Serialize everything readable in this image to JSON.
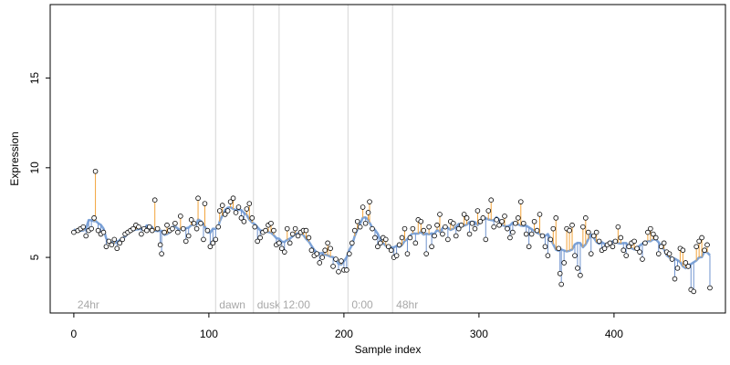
{
  "chart_data": {
    "type": "scatter",
    "title": "",
    "xlabel": "Sample index",
    "ylabel": "Expression",
    "xlim": [
      -17.5,
      482.5
    ],
    "ylim": [
      1.9,
      19.1
    ],
    "x_ticks": [
      0,
      100,
      200,
      300,
      400
    ],
    "y_ticks": [
      5,
      10,
      15
    ],
    "grid": false,
    "legend": "none",
    "colors": {
      "fitted_line": "#7ea4d8",
      "residual_up": "#f2a33a",
      "residual_down": "#6f93cf",
      "point_edge": "#000000",
      "point_fill": "#ffffff",
      "region_line": "#d6d6d6",
      "region_text": "#a8a8a8"
    },
    "region_markers": [
      {
        "x": 0,
        "label": "24hr"
      },
      {
        "x": 105,
        "label": "dawn"
      },
      {
        "x": 133,
        "label": "dusk"
      },
      {
        "x": 152,
        "label": "12:00"
      },
      {
        "x": 203,
        "label": "0:00"
      },
      {
        "x": 236,
        "label": "48hr"
      }
    ],
    "series_summary": "approximately 465 samples; observed expression around 4–8 with one outlier near 9.8 at index ~16",
    "points": [
      [
        0,
        6.4
      ],
      [
        3,
        6.5
      ],
      [
        5,
        6.6
      ],
      [
        7,
        6.7
      ],
      [
        9,
        6.2
      ],
      [
        11,
        6.5
      ],
      [
        13,
        6.6
      ],
      [
        15,
        7.2
      ],
      [
        16,
        9.8
      ],
      [
        18,
        6.5
      ],
      [
        20,
        6.3
      ],
      [
        22,
        6.4
      ],
      [
        24,
        5.6
      ],
      [
        26,
        5.9
      ],
      [
        28,
        5.7
      ],
      [
        30,
        6.0
      ],
      [
        32,
        5.5
      ],
      [
        34,
        5.8
      ],
      [
        36,
        6.0
      ],
      [
        38,
        6.3
      ],
      [
        40,
        6.4
      ],
      [
        42,
        6.5
      ],
      [
        44,
        6.6
      ],
      [
        46,
        6.8
      ],
      [
        48,
        6.7
      ],
      [
        50,
        6.3
      ],
      [
        52,
        6.6
      ],
      [
        54,
        6.5
      ],
      [
        56,
        6.7
      ],
      [
        58,
        6.5
      ],
      [
        60,
        8.2
      ],
      [
        62,
        6.6
      ],
      [
        64,
        5.7
      ],
      [
        65,
        5.2
      ],
      [
        67,
        6.4
      ],
      [
        69,
        6.8
      ],
      [
        71,
        6.5
      ],
      [
        73,
        6.6
      ],
      [
        75,
        6.9
      ],
      [
        77,
        6.4
      ],
      [
        79,
        7.3
      ],
      [
        81,
        6.6
      ],
      [
        83,
        5.9
      ],
      [
        85,
        6.2
      ],
      [
        87,
        7.1
      ],
      [
        89,
        6.9
      ],
      [
        91,
        6.6
      ],
      [
        92,
        8.3
      ],
      [
        94,
        6.9
      ],
      [
        96,
        6.0
      ],
      [
        97,
        8.0
      ],
      [
        99,
        6.5
      ],
      [
        101,
        5.6
      ],
      [
        103,
        5.8
      ],
      [
        105,
        6.0
      ],
      [
        107,
        6.7
      ],
      [
        108,
        7.6
      ],
      [
        110,
        7.9
      ],
      [
        112,
        7.4
      ],
      [
        114,
        7.6
      ],
      [
        116,
        8.1
      ],
      [
        118,
        8.3
      ],
      [
        120,
        7.5
      ],
      [
        122,
        7.8
      ],
      [
        124,
        7.2
      ],
      [
        126,
        7.0
      ],
      [
        128,
        7.7
      ],
      [
        130,
        8.0
      ],
      [
        132,
        7.2
      ],
      [
        134,
        6.7
      ],
      [
        136,
        5.9
      ],
      [
        138,
        6.1
      ],
      [
        140,
        6.4
      ],
      [
        142,
        6.5
      ],
      [
        144,
        6.8
      ],
      [
        146,
        6.9
      ],
      [
        148,
        6.5
      ],
      [
        150,
        5.7
      ],
      [
        152,
        5.8
      ],
      [
        154,
        5.5
      ],
      [
        156,
        5.3
      ],
      [
        158,
        6.6
      ],
      [
        160,
        5.8
      ],
      [
        162,
        6.3
      ],
      [
        164,
        6.6
      ],
      [
        166,
        6.2
      ],
      [
        168,
        6.4
      ],
      [
        170,
        6.5
      ],
      [
        172,
        6.5
      ],
      [
        174,
        6.1
      ],
      [
        176,
        5.4
      ],
      [
        178,
        5.1
      ],
      [
        180,
        5.2
      ],
      [
        182,
        4.7
      ],
      [
        184,
        5.0
      ],
      [
        186,
        5.4
      ],
      [
        188,
        5.8
      ],
      [
        190,
        5.5
      ],
      [
        192,
        4.5
      ],
      [
        194,
        4.9
      ],
      [
        196,
        4.2
      ],
      [
        198,
        4.8
      ],
      [
        200,
        4.3
      ],
      [
        202,
        4.3
      ],
      [
        204,
        5.2
      ],
      [
        206,
        5.8
      ],
      [
        208,
        6.5
      ],
      [
        210,
        7.0
      ],
      [
        212,
        6.7
      ],
      [
        214,
        7.8
      ],
      [
        216,
        6.9
      ],
      [
        218,
        7.5
      ],
      [
        219,
        8.1
      ],
      [
        221,
        6.6
      ],
      [
        223,
        6.1
      ],
      [
        225,
        5.6
      ],
      [
        227,
        5.8
      ],
      [
        229,
        6.1
      ],
      [
        231,
        6.0
      ],
      [
        233,
        5.6
      ],
      [
        235,
        5.4
      ],
      [
        237,
        5.0
      ],
      [
        239,
        5.1
      ],
      [
        241,
        5.7
      ],
      [
        243,
        6.1
      ],
      [
        245,
        6.6
      ],
      [
        247,
        5.2
      ],
      [
        249,
        6.1
      ],
      [
        251,
        6.6
      ],
      [
        253,
        5.8
      ],
      [
        255,
        7.1
      ],
      [
        257,
        7.0
      ],
      [
        259,
        6.5
      ],
      [
        261,
        5.2
      ],
      [
        263,
        6.7
      ],
      [
        265,
        5.6
      ],
      [
        267,
        6.2
      ],
      [
        269,
        6.8
      ],
      [
        271,
        7.4
      ],
      [
        273,
        6.3
      ],
      [
        275,
        6.7
      ],
      [
        277,
        6.0
      ],
      [
        279,
        7.0
      ],
      [
        281,
        6.9
      ],
      [
        283,
        6.2
      ],
      [
        285,
        6.6
      ],
      [
        287,
        6.8
      ],
      [
        289,
        7.4
      ],
      [
        291,
        7.2
      ],
      [
        293,
        6.3
      ],
      [
        295,
        6.9
      ],
      [
        297,
        6.6
      ],
      [
        299,
        7.6
      ],
      [
        301,
        7.0
      ],
      [
        303,
        7.2
      ],
      [
        305,
        6.0
      ],
      [
        307,
        7.6
      ],
      [
        309,
        8.2
      ],
      [
        311,
        6.7
      ],
      [
        313,
        7.1
      ],
      [
        315,
        6.8
      ],
      [
        317,
        7.0
      ],
      [
        319,
        7.3
      ],
      [
        321,
        6.6
      ],
      [
        323,
        6.1
      ],
      [
        325,
        6.4
      ],
      [
        327,
        6.9
      ],
      [
        329,
        7.2
      ],
      [
        331,
        8.1
      ],
      [
        333,
        6.9
      ],
      [
        335,
        6.3
      ],
      [
        337,
        5.6
      ],
      [
        339,
        6.3
      ],
      [
        341,
        7.0
      ],
      [
        343,
        6.5
      ],
      [
        345,
        7.4
      ],
      [
        347,
        6.2
      ],
      [
        349,
        5.6
      ],
      [
        351,
        5.1
      ],
      [
        353,
        6.0
      ],
      [
        355,
        6.6
      ],
      [
        357,
        7.2
      ],
      [
        359,
        5.5
      ],
      [
        360,
        4.1
      ],
      [
        361,
        3.5
      ],
      [
        363,
        4.7
      ],
      [
        365,
        6.6
      ],
      [
        367,
        6.5
      ],
      [
        369,
        6.8
      ],
      [
        371,
        5.1
      ],
      [
        373,
        4.4
      ],
      [
        375,
        4.0
      ],
      [
        377,
        6.7
      ],
      [
        379,
        7.2
      ],
      [
        381,
        6.4
      ],
      [
        383,
        5.2
      ],
      [
        385,
        6.2
      ],
      [
        387,
        6.4
      ],
      [
        389,
        5.9
      ],
      [
        391,
        5.4
      ],
      [
        393,
        5.5
      ],
      [
        395,
        5.7
      ],
      [
        397,
        5.8
      ],
      [
        399,
        5.6
      ],
      [
        401,
        5.9
      ],
      [
        403,
        6.7
      ],
      [
        405,
        6.1
      ],
      [
        407,
        5.4
      ],
      [
        409,
        5.1
      ],
      [
        411,
        5.6
      ],
      [
        413,
        5.8
      ],
      [
        415,
        5.9
      ],
      [
        417,
        5.5
      ],
      [
        419,
        5.3
      ],
      [
        421,
        4.9
      ],
      [
        423,
        5.8
      ],
      [
        425,
        6.4
      ],
      [
        427,
        6.6
      ],
      [
        429,
        6.3
      ],
      [
        431,
        6.1
      ],
      [
        433,
        5.2
      ],
      [
        435,
        5.6
      ],
      [
        437,
        5.8
      ],
      [
        439,
        5.3
      ],
      [
        441,
        5.2
      ],
      [
        443,
        4.9
      ],
      [
        445,
        3.8
      ],
      [
        447,
        4.4
      ],
      [
        449,
        5.5
      ],
      [
        451,
        5.4
      ],
      [
        453,
        4.7
      ],
      [
        455,
        4.5
      ],
      [
        457,
        3.2
      ],
      [
        459,
        3.1
      ],
      [
        461,
        5.6
      ],
      [
        463,
        5.9
      ],
      [
        465,
        6.1
      ],
      [
        467,
        5.4
      ],
      [
        469,
        5.7
      ],
      [
        471,
        3.3
      ]
    ]
  }
}
